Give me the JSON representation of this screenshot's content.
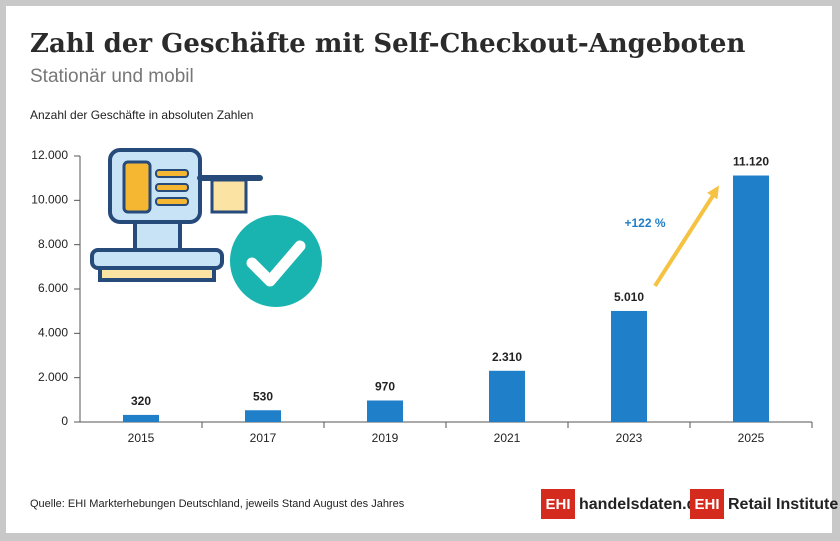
{
  "chart_data": {
    "type": "bar",
    "title": "Zahl der Geschäfte mit Self-Checkout-Angeboten",
    "subtitle": "Stationär und mobil",
    "y_label": "Anzahl der Geschäfte in absoluten Zahlen",
    "categories": [
      "2015",
      "2017",
      "2019",
      "2021",
      "2023",
      "2025"
    ],
    "values": [
      320,
      530,
      970,
      2310,
      5010,
      11120
    ],
    "value_labels": [
      "320",
      "530",
      "970",
      "2.310",
      "5.010",
      "11.120"
    ],
    "color": "#1f7fc8",
    "ylim": [
      0,
      12000
    ],
    "yticks": [
      0,
      {
        "value": 2000,
        "label": "2.000"
      },
      {
        "value": 4000,
        "label": "4.000"
      },
      {
        "value": 6000,
        "label": "6.000"
      },
      {
        "value": 8000,
        "label": "8.000"
      },
      {
        "value": 10000,
        "label": "10.000"
      },
      {
        "value": 12000,
        "label": "12.000"
      }
    ],
    "grid": false,
    "annotation": "+122 %",
    "source": "Quelle: EHI Markterhebungen Deutschland, jeweils Stand August des Jahres",
    "logos": [
      {
        "badge": "EHI",
        "text": "handelsdaten.de"
      },
      {
        "badge": "EHI",
        "text": "Retail Institute"
      }
    ]
  }
}
